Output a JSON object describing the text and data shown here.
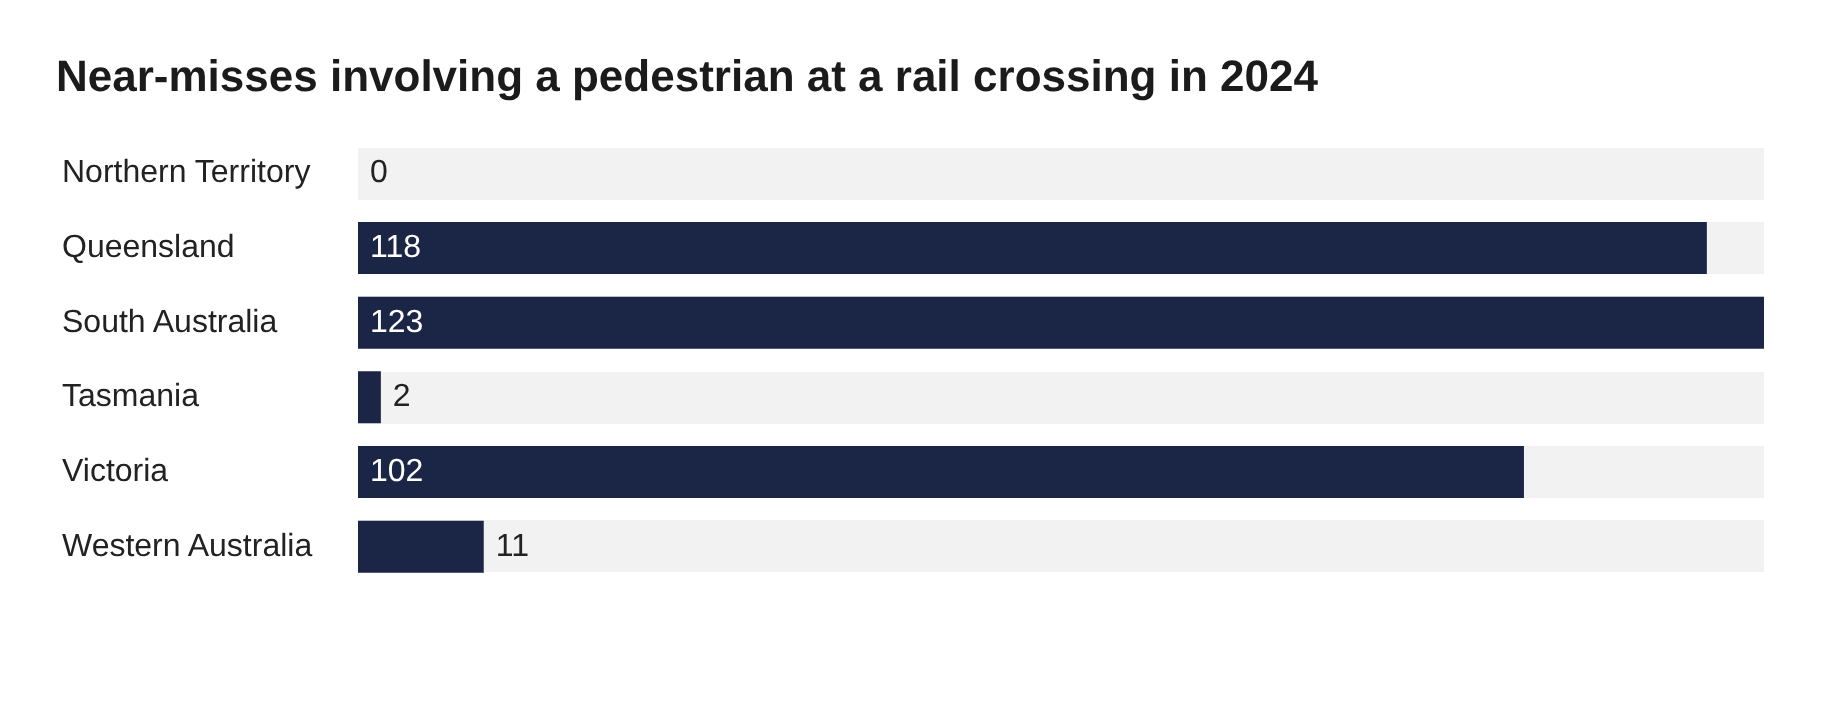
{
  "chart_data": {
    "type": "bar",
    "orientation": "horizontal",
    "title": "Near-misses involving a pedestrian at a rail crossing in 2024",
    "categories": [
      "Northern Territory",
      "Queensland",
      "South Australia",
      "Tasmania",
      "Victoria",
      "Western Australia"
    ],
    "values": [
      0,
      118,
      123,
      2,
      102,
      11
    ],
    "color": "#1b2545",
    "data_labels": true,
    "xlim": [
      0,
      123
    ]
  }
}
